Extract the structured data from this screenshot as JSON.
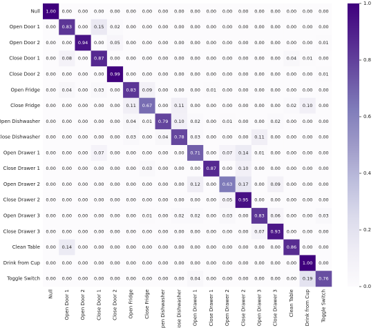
{
  "chart_data": {
    "type": "heatmap",
    "categories": [
      "Null",
      "Open Door 1",
      "Open Door 2",
      "Close Door 1",
      "Close Door 2",
      "Open Fridge",
      "Close Fridge",
      "Open Dishwasher",
      "Close Dishwasher",
      "Open Drawer 1",
      "Close Drawer 1",
      "Open Drawer 2",
      "Close Drawer 2",
      "Open Drawer 3",
      "Close Drawer 3",
      "Clean Table",
      "Drink from Cup",
      "Toggle Switch"
    ],
    "values": [
      [
        1,
        0,
        0,
        0,
        0,
        0,
        0,
        0,
        0,
        0,
        0,
        0,
        0,
        0,
        0,
        0,
        0,
        0
      ],
      [
        0,
        0.83,
        0,
        0.15,
        0.02,
        0,
        0,
        0,
        0,
        0,
        0,
        0,
        0,
        0,
        0,
        0,
        0,
        0
      ],
      [
        0,
        0,
        0.94,
        0,
        0.05,
        0,
        0,
        0,
        0,
        0,
        0,
        0,
        0,
        0,
        0,
        0,
        0,
        0.01
      ],
      [
        0,
        0.08,
        0,
        0.87,
        0,
        0,
        0,
        0,
        0,
        0,
        0,
        0,
        0,
        0,
        0,
        0.04,
        0.01,
        0
      ],
      [
        0,
        0,
        0,
        0,
        0.99,
        0,
        0,
        0,
        0,
        0,
        0,
        0,
        0,
        0,
        0,
        0,
        0,
        0.01
      ],
      [
        0,
        0.04,
        0,
        0.03,
        0,
        0.83,
        0.09,
        0,
        0,
        0,
        0.01,
        0,
        0,
        0,
        0,
        0,
        0,
        0
      ],
      [
        0,
        0,
        0,
        0,
        0,
        0.11,
        0.67,
        0,
        0.11,
        0,
        0,
        0,
        0,
        0,
        0,
        0.02,
        0.1,
        0
      ],
      [
        0,
        0,
        0,
        0,
        0,
        0.04,
        0.01,
        0.79,
        0.1,
        0.02,
        0,
        0.01,
        0,
        0,
        0.02,
        0,
        0,
        0
      ],
      [
        0,
        0,
        0,
        0,
        0,
        0.03,
        0,
        0.04,
        0.78,
        0.03,
        0,
        0,
        0,
        0.11,
        0,
        0,
        0,
        0
      ],
      [
        0,
        0,
        0,
        0.07,
        0,
        0,
        0,
        0,
        0,
        0.71,
        0,
        0.07,
        0.14,
        0.01,
        0,
        0,
        0,
        0
      ],
      [
        0,
        0,
        0,
        0,
        0,
        0,
        0.03,
        0,
        0,
        0,
        0.87,
        0,
        0.1,
        0,
        0,
        0,
        0,
        0
      ],
      [
        0,
        0,
        0,
        0,
        0,
        0,
        0,
        0,
        0,
        0.12,
        0,
        0.63,
        0.17,
        0,
        0.09,
        0,
        0,
        0
      ],
      [
        0,
        0,
        0,
        0,
        0,
        0,
        0,
        0,
        0,
        0,
        0,
        0.05,
        0.95,
        0,
        0,
        0,
        0,
        0
      ],
      [
        0,
        0,
        0,
        0,
        0,
        0,
        0.01,
        0,
        0.02,
        0.02,
        0,
        0.03,
        0,
        0.83,
        0.06,
        0,
        0,
        0.03
      ],
      [
        0,
        0,
        0,
        0,
        0,
        0,
        0,
        0,
        0,
        0,
        0,
        0,
        0,
        0.07,
        0.93,
        0,
        0,
        0
      ],
      [
        0,
        0.14,
        0,
        0,
        0,
        0,
        0,
        0,
        0,
        0,
        0,
        0,
        0,
        0,
        0,
        0.86,
        0,
        0
      ],
      [
        0,
        0,
        0,
        0,
        0,
        0,
        0,
        0,
        0,
        0,
        0,
        0,
        0,
        0,
        0,
        0,
        1,
        0
      ],
      [
        0,
        0,
        0,
        0,
        0,
        0,
        0,
        0,
        0,
        0.04,
        0,
        0,
        0,
        0,
        0,
        0,
        0.19,
        0.76
      ]
    ],
    "value_labels": [
      [
        "1.00",
        "0.00",
        "0.00",
        "0.00",
        "0.00",
        "0.00",
        "0.00",
        "0.00",
        "0.00",
        "0.00",
        "0.00",
        "0.00",
        "0.00",
        "0.00",
        "0.00",
        "0.00",
        "0.00",
        "0.00"
      ],
      [
        "0.00",
        "0.83",
        "0.00",
        "0.15",
        "0.02",
        "0.00",
        "0.00",
        "0.00",
        "0.00",
        "0.00",
        "0.00",
        "0.00",
        "0.00",
        "0.00",
        "0.00",
        "0.00",
        "0.00",
        "0.00"
      ],
      [
        "0.00",
        "0.00",
        "0.94",
        "0.00",
        "0.05",
        "0.00",
        "0.00",
        "0.00",
        "0.00",
        "0.00",
        "0.00",
        "0.00",
        "0.00",
        "0.00",
        "0.00",
        "0.00",
        "0.00",
        "0.01"
      ],
      [
        "0.00",
        "0.08",
        "0.00",
        "0.87",
        "0.00",
        "0.00",
        "0.00",
        "0.00",
        "0.00",
        "0.00",
        "0.00",
        "0.00",
        "0.00",
        "0.00",
        "0.00",
        "0.04",
        "0.01",
        "0.00"
      ],
      [
        "0.00",
        "0.00",
        "0.00",
        "0.00",
        "0.99",
        "0.00",
        "0.00",
        "0.00",
        "0.00",
        "0.00",
        "0.00",
        "0.00",
        "0.00",
        "0.00",
        "0.00",
        "0.00",
        "0.00",
        "0.01"
      ],
      [
        "0.00",
        "0.04",
        "0.00",
        "0.03",
        "0.00",
        "0.83",
        "0.09",
        "0.00",
        "0.00",
        "0.00",
        "0.01",
        "0.00",
        "0.00",
        "0.00",
        "0.00",
        "0.00",
        "0.00",
        "0.00"
      ],
      [
        "0.00",
        "0.00",
        "0.00",
        "0.00",
        "0.00",
        "0.11",
        "0.67",
        "0.00",
        "0.11",
        "0.00",
        "0.00",
        "0.00",
        "0.00",
        "0.00",
        "0.00",
        "0.02",
        "0.10",
        "0.00"
      ],
      [
        "0.00",
        "0.00",
        "0.00",
        "0.00",
        "0.00",
        "0.04",
        "0.01",
        "0.79",
        "0.10",
        "0.02",
        "0.00",
        "0.01",
        "0.00",
        "0.00",
        "0.02",
        "0.00",
        "0.00",
        "0.00"
      ],
      [
        "0.00",
        "0.00",
        "0.00",
        "0.00",
        "0.00",
        "0.03",
        "0.00",
        "0.04",
        "0.78",
        "0.03",
        "0.00",
        "0.00",
        "0.00",
        "0.11",
        "0.00",
        "0.00",
        "0.00",
        "0.00"
      ],
      [
        "0.00",
        "0.00",
        "0.00",
        "0.07",
        "0.00",
        "0.00",
        "0.00",
        "0.00",
        "0.00",
        "0.71",
        "0.00",
        "0.07",
        "0.14",
        "0.01",
        "0.00",
        "0.00",
        "0.00",
        "0.00"
      ],
      [
        "0.00",
        "0.00",
        "0.00",
        "0.00",
        "0.00",
        "0.00",
        "0.03",
        "0.00",
        "0.00",
        "0.00",
        "0.87",
        "0.00",
        "0.10",
        "0.00",
        "0.00",
        "0.00",
        "0.00",
        "0.00"
      ],
      [
        "0.00",
        "0.00",
        "0.00",
        "0.00",
        "0.00",
        "0.00",
        "0.00",
        "0.00",
        "0.00",
        "0.12",
        "0.00",
        "0.63",
        "0.17",
        "0.00",
        "0.09",
        "0.00",
        "0.00",
        "0.00"
      ],
      [
        "0.00",
        "0.00",
        "0.00",
        "0.00",
        "0.00",
        "0.00",
        "0.00",
        "0.00",
        "0.00",
        "0.00",
        "0.00",
        "0.05",
        "0.95",
        "0.00",
        "0.00",
        "0.00",
        "0.00",
        "0.00"
      ],
      [
        "0.00",
        "0.00",
        "0.00",
        "0.00",
        "0.00",
        "0.00",
        "0.01",
        "0.00",
        "0.02",
        "0.02",
        "0.00",
        "0.03",
        "0.00",
        "0.83",
        "0.06",
        "0.00",
        "0.00",
        "0.03"
      ],
      [
        "0.00",
        "0.00",
        "0.00",
        "0.00",
        "0.00",
        "0.00",
        "0.00",
        "0.00",
        "0.00",
        "0.00",
        "0.00",
        "0.00",
        "0.00",
        "0.07",
        "0.93",
        "0.00",
        "0.00",
        "0.00"
      ],
      [
        "0.00",
        "0.14",
        "0.00",
        "0.00",
        "0.00",
        "0.00",
        "0.00",
        "0.00",
        "0.00",
        "0.00",
        "0.00",
        "0.00",
        "0.00",
        "0.00",
        "0.00",
        "0.86",
        "0.00",
        "0.00"
      ],
      [
        "0.00",
        "0.00",
        "0.00",
        "0.00",
        "0.00",
        "0.00",
        "0.00",
        "0.00",
        "0.00",
        "0.00",
        "0.00",
        "0.00",
        "0.00",
        "0.00",
        "0.00",
        "0.00",
        "1.00",
        "0.00"
      ],
      [
        "0.00",
        "0.00",
        "0.00",
        "0.00",
        "0.00",
        "0.00",
        "0.00",
        "0.00",
        "0.00",
        "0.04",
        "0.00",
        "0.00",
        "0.00",
        "0.00",
        "0.00",
        "0.00",
        "0.19",
        "0.76"
      ]
    ],
    "colormap": [
      "#fcfbfd",
      "#efedf5",
      "#dadaeb",
      "#bcbddc",
      "#9e9ac8",
      "#807dba",
      "#6a51a3",
      "#54278f",
      "#3f007d"
    ],
    "zlim": [
      0,
      1
    ],
    "zticks": [
      {
        "value": 0,
        "label": "0.0"
      },
      {
        "value": 0.2,
        "label": "0.2"
      },
      {
        "value": 0.4,
        "label": "0.4"
      },
      {
        "value": 0.6,
        "label": "0.6"
      },
      {
        "value": 0.8,
        "label": "0.8"
      },
      {
        "value": 1,
        "label": "1.0"
      }
    ]
  }
}
